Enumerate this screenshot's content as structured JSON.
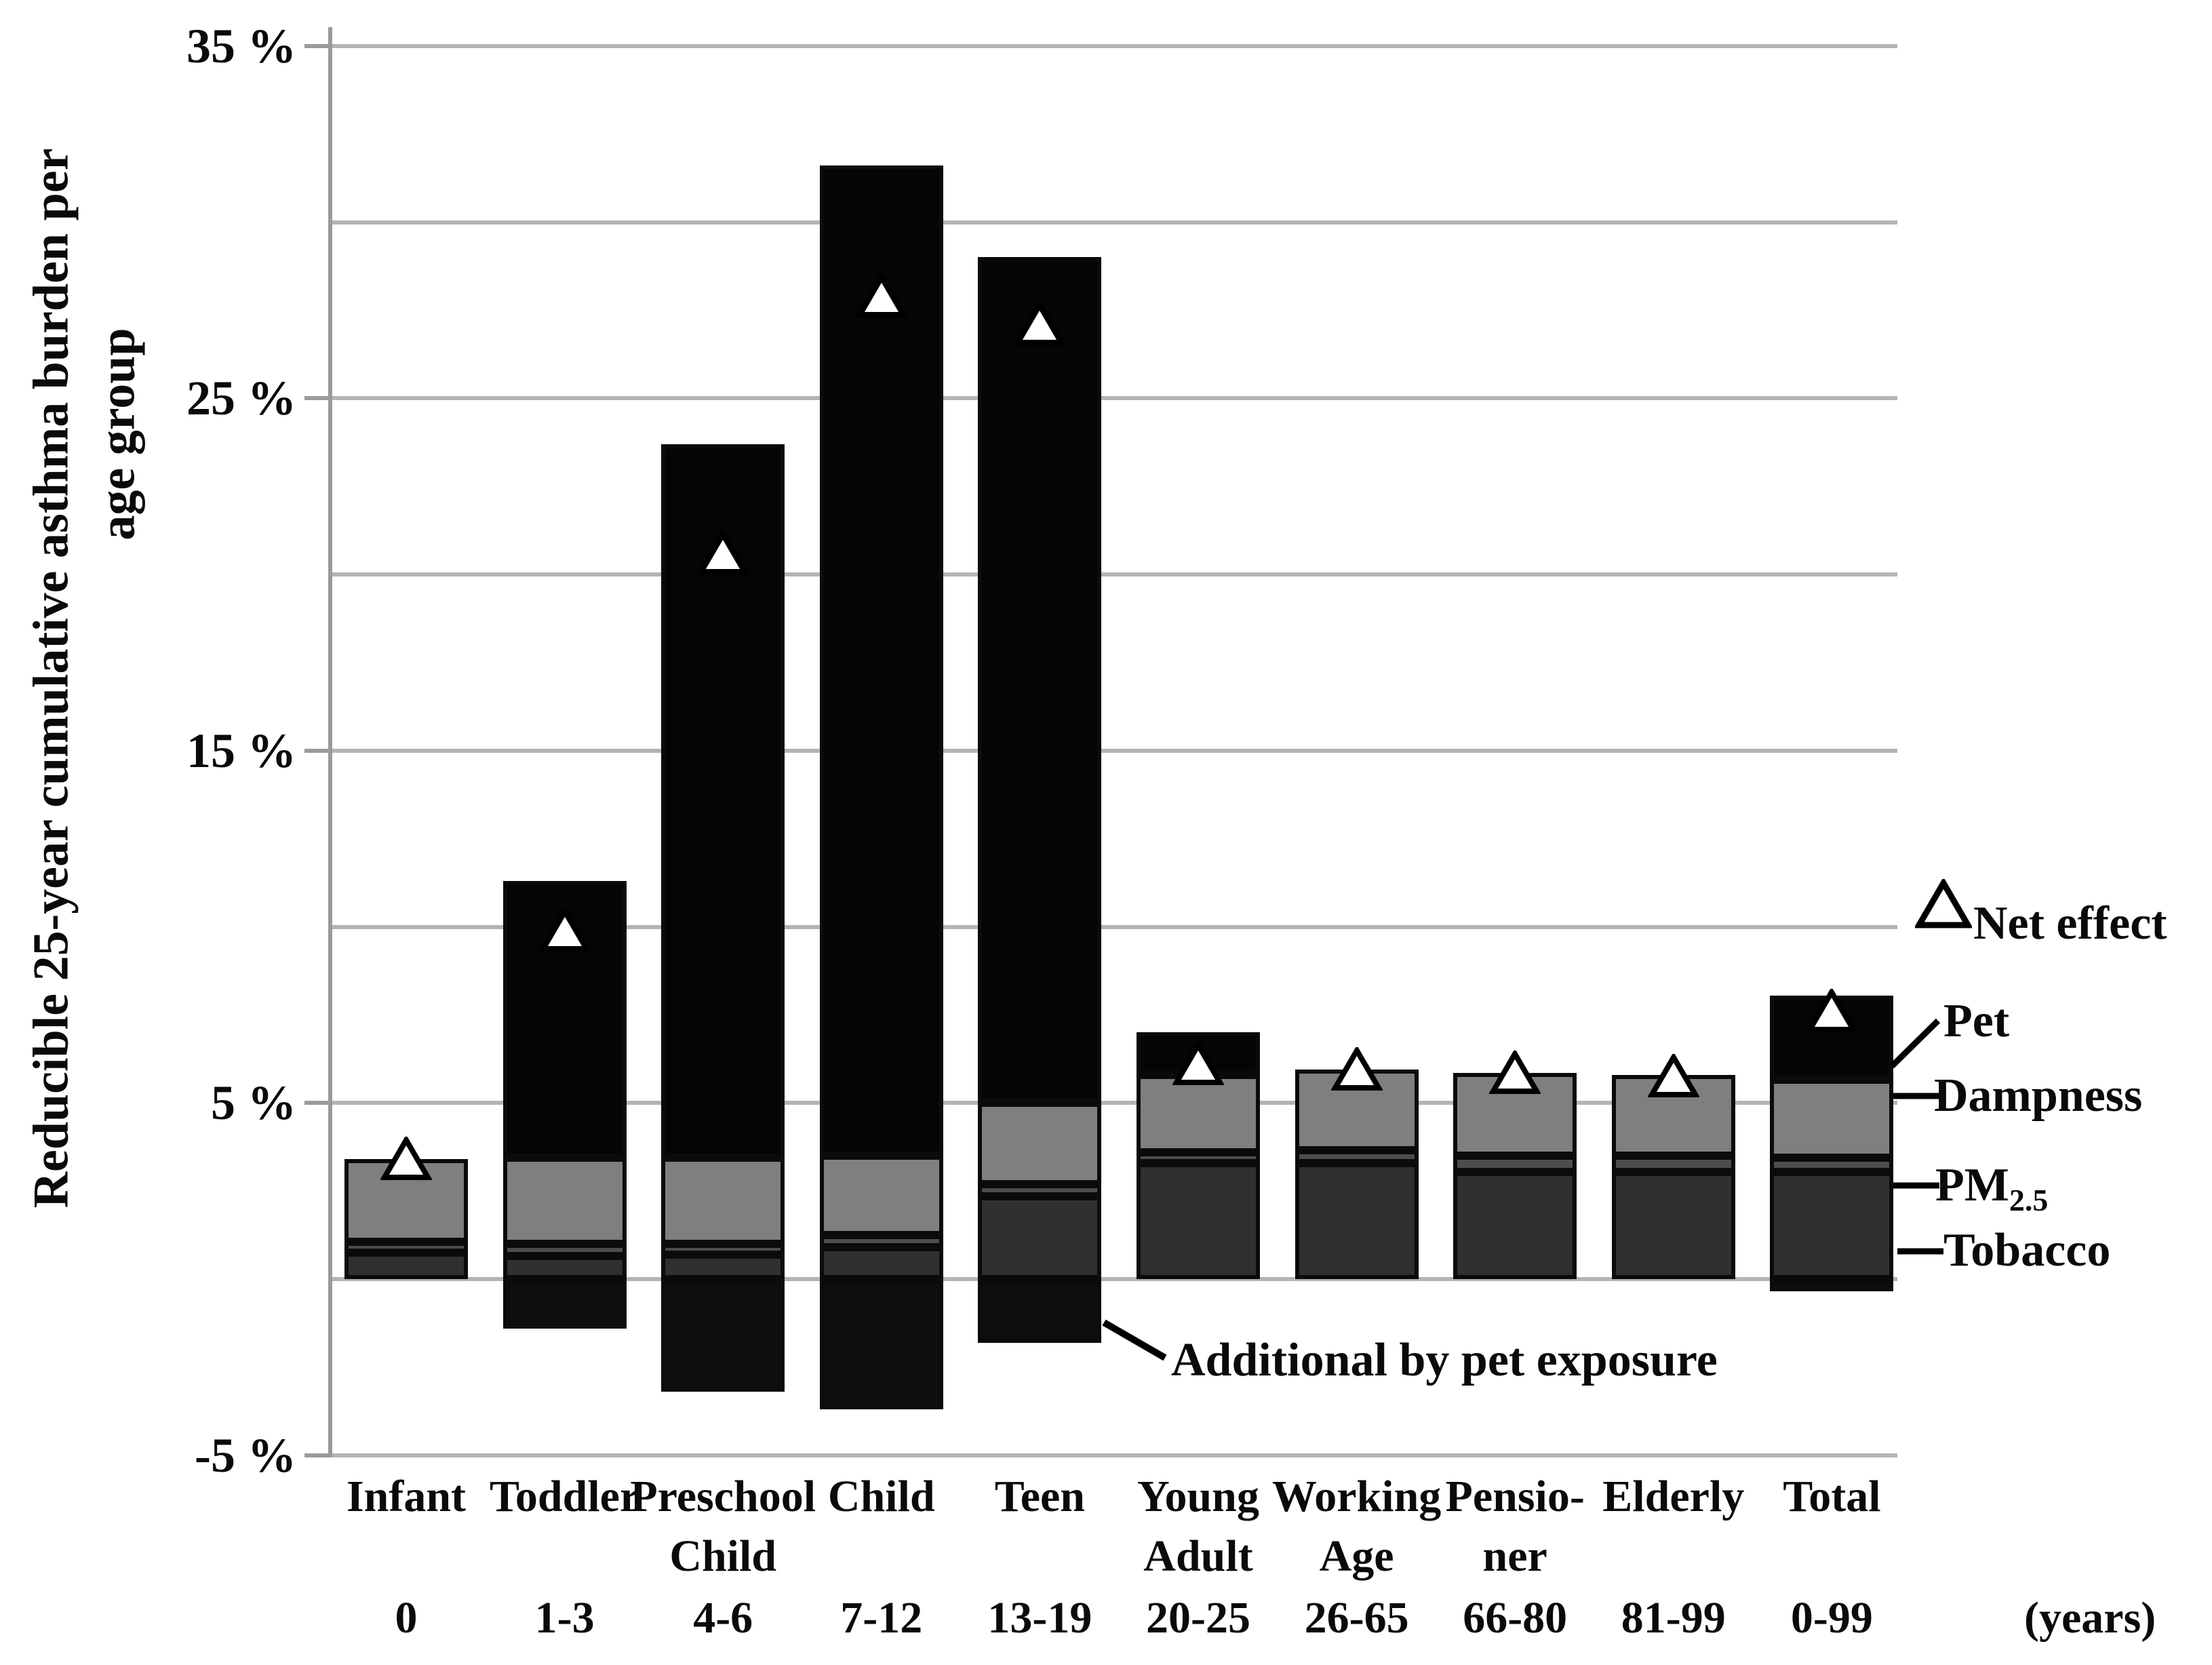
{
  "chart_data": {
    "type": "bar",
    "stacked": true,
    "title": "",
    "ylabel_lines": [
      "Reducible  25-year cumulative asthma burden per",
      "age group"
    ],
    "ylim": [
      -5,
      35
    ],
    "grid": true,
    "gridlines_pct": [
      35,
      30,
      25,
      20,
      15,
      10,
      5,
      0,
      -5
    ],
    "y_ticks": [
      {
        "value": 35,
        "label": "35 %"
      },
      {
        "value": 25,
        "label": "25 %"
      },
      {
        "value": 15,
        "label": "15 %"
      },
      {
        "value": 5,
        "label": "5 %"
      },
      {
        "value": -5,
        "label": "-5 %"
      }
    ],
    "categories": [
      {
        "name": [
          "Infant"
        ],
        "age": "0"
      },
      {
        "name": [
          "Toddler"
        ],
        "age": "1-3"
      },
      {
        "name": [
          "Preschool",
          "Child"
        ],
        "age": "4-6"
      },
      {
        "name": [
          "Child"
        ],
        "age": "7-12"
      },
      {
        "name": [
          "Teen"
        ],
        "age": "13-19"
      },
      {
        "name": [
          "Young",
          "Adult"
        ],
        "age": "20-25"
      },
      {
        "name": [
          "Working",
          "Age"
        ],
        "age": "26-65"
      },
      {
        "name": [
          "Pensio-",
          "ner"
        ],
        "age": "66-80"
      },
      {
        "name": [
          "Elderly"
        ],
        "age": "81-99"
      },
      {
        "name": [
          "Total"
        ],
        "age": "0-99"
      }
    ],
    "age_axis_unit": "(years)",
    "series": [
      {
        "name": "Tobacco",
        "color": "#303030",
        "values": [
          0.75,
          0.65,
          0.7,
          0.9,
          2.35,
          3.3,
          3.3,
          3.05,
          3.05,
          3.05
        ]
      },
      {
        "name": "PM2.5",
        "color": "#4d4d4d",
        "values": [
          0.3,
          0.35,
          0.3,
          0.35,
          0.35,
          0.3,
          0.35,
          0.45,
          0.45,
          0.4
        ]
      },
      {
        "name": "Dampness",
        "color": "#7f7f7f",
        "values": [
          2.35,
          2.45,
          2.45,
          2.25,
          2.3,
          2.2,
          2.3,
          2.35,
          2.3,
          2.2
        ]
      },
      {
        "name": "Pet",
        "color": "#050505",
        "values": [
          0.0,
          7.85,
          20.25,
          28.1,
          24.0,
          1.2,
          0.0,
          0.0,
          0.0,
          2.4
        ]
      }
    ],
    "negative_series": {
      "name": "Additional by pet exposure",
      "color": "#0e0e0e",
      "values": [
        0,
        -1.4,
        -3.2,
        -3.7,
        -1.8,
        0,
        0,
        0,
        0,
        -0.35
      ]
    },
    "net_effect": {
      "label": "Net effect",
      "marker": "open-triangle",
      "values": [
        3.4,
        9.9,
        20.6,
        27.9,
        27.1,
        6.1,
        5.95,
        5.85,
        5.75,
        7.6
      ]
    },
    "legend": {
      "net_effect": "Net effect",
      "pet": "Pet",
      "dampness": "Dampness",
      "pm_base": "PM",
      "pm_sub": "2.5",
      "tobacco": "Tobacco"
    },
    "annotation": "Additional by pet exposure",
    "colors": {
      "gridline": "#b4b4b4",
      "axis": "#9a9a9a",
      "bar_border": "#0b0b0b",
      "marker_fill": "#ffffff",
      "marker_stroke": "#000000",
      "background": "#ffffff"
    }
  }
}
